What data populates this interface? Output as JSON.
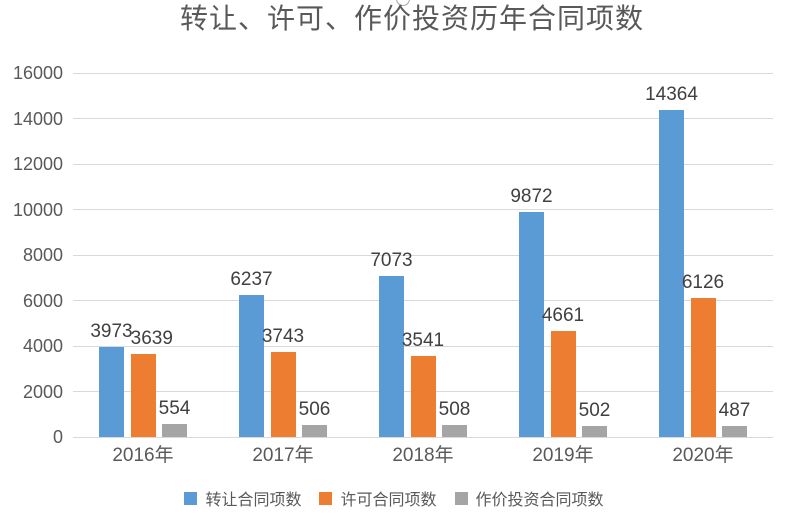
{
  "chart_data": {
    "type": "bar",
    "title": "转让、许可、作价投资历年合同项数",
    "categories": [
      "2016年",
      "2017年",
      "2018年",
      "2019年",
      "2020年"
    ],
    "series": [
      {
        "name": "转让合同项数",
        "color": "#5B9BD5",
        "values": [
          3973,
          6237,
          7073,
          9872,
          14364
        ]
      },
      {
        "name": "许可合同项数",
        "color": "#ED7D31",
        "values": [
          3639,
          3743,
          3541,
          4661,
          6126
        ]
      },
      {
        "name": "作价投资合同项数",
        "color": "#A5A5A5",
        "values": [
          554,
          506,
          508,
          502,
          487
        ]
      }
    ],
    "ylim": [
      0,
      16000
    ],
    "ytick_step": 2000,
    "yticks": [
      0,
      2000,
      4000,
      6000,
      8000,
      10000,
      12000,
      14000,
      16000
    ],
    "grid": true,
    "data_labels": true,
    "legend_position": "bottom",
    "xlabel": "",
    "ylabel": ""
  },
  "style": {
    "gridline_color": "#D9D9D9",
    "axis_line_color": "#D9D9D9",
    "tick_label_color": "#595959",
    "data_label_color": "#404040",
    "title_color": "#595959"
  }
}
